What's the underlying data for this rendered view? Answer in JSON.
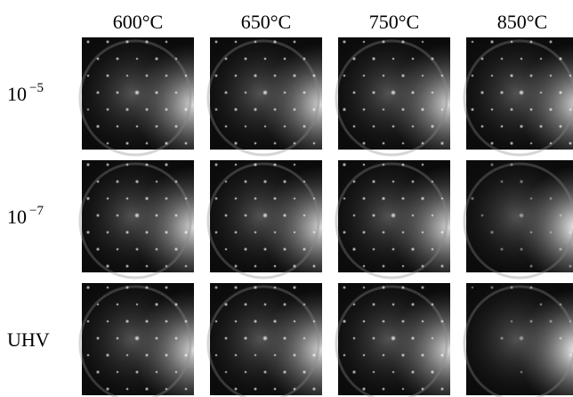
{
  "figure": {
    "columns": [
      "600°C",
      "650°C",
      "750°C",
      "850°C"
    ],
    "rows": [
      {
        "label": "10",
        "superscript": "−5"
      },
      {
        "label": "10",
        "superscript": "−7"
      },
      {
        "label": "UHV"
      }
    ]
  }
}
